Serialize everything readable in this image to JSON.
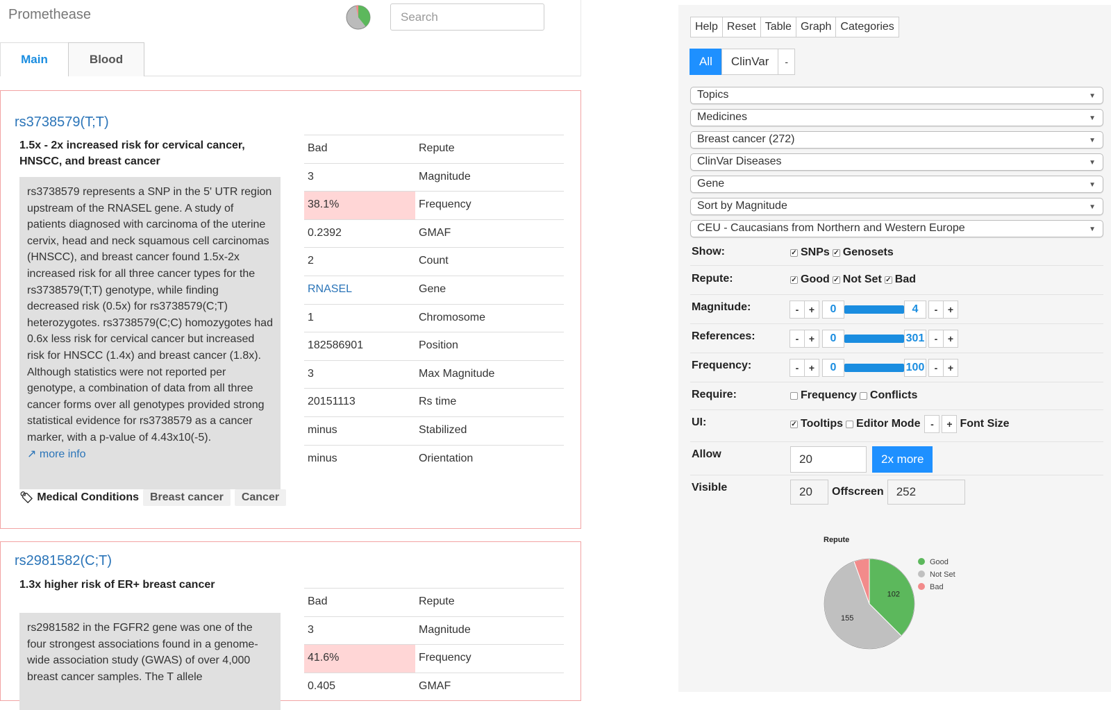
{
  "header": {
    "brand": "Promethease",
    "search_placeholder": "Search",
    "tabs": [
      "Main",
      "Blood"
    ]
  },
  "cards": [
    {
      "title": "rs3738579(T;T)",
      "summary": "1.5x - 2x increased risk for cervical cancer, HNSCC, and breast cancer",
      "description": "rs3738579 represents a SNP in the 5' UTR region upstream of the RNASEL gene. A study of patients diagnosed with carcinoma of the uterine cervix, head and neck squamous cell carcinomas (HNSCC), and breast cancer found 1.5x-2x increased risk for all three cancer types for the rs3738579(T;T) genotype, while finding decreased risk (0.5x) for rs3738579(C;T) heterozygotes. rs3738579(C;C) homozygotes had 0.6x less risk for cervical cancer but increased risk for HNSCC (1.4x) and breast cancer (1.8x). Although statistics were not reported per genotype, a combination of data from all three cancer forms over all genotypes provided strong statistical evidence for rs3738579 as a cancer marker, with a p-value of 4.43x10(-5).",
      "more_info": "more info",
      "tags_label": "Medical Conditions",
      "tags": [
        "Breast cancer",
        "Cancer"
      ],
      "props": [
        {
          "value": "Bad",
          "key": "Repute"
        },
        {
          "value": "3",
          "key": "Magnitude"
        },
        {
          "value": "38.1%",
          "key": "Frequency"
        },
        {
          "value": "0.2392",
          "key": "GMAF"
        },
        {
          "value": "2",
          "key": "Count"
        },
        {
          "value": "RNASEL",
          "key": "Gene"
        },
        {
          "value": "1",
          "key": "Chromosome"
        },
        {
          "value": "182586901",
          "key": "Position"
        },
        {
          "value": "3",
          "key": "Max Magnitude"
        },
        {
          "value": "20151113",
          "key": "Rs time"
        },
        {
          "value": "minus",
          "key": "Stabilized"
        },
        {
          "value": "minus",
          "key": "Orientation"
        }
      ]
    },
    {
      "title": "rs2981582(C;T)",
      "summary": "1.3x higher risk of ER+ breast cancer",
      "description": "rs2981582 in the FGFR2 gene was one of the four strongest associations found in a genome-wide association study (GWAS) of over 4,000 breast cancer samples. The T allele",
      "props": [
        {
          "value": "Bad",
          "key": "Repute"
        },
        {
          "value": "3",
          "key": "Magnitude"
        },
        {
          "value": "41.6%",
          "key": "Frequency"
        },
        {
          "value": "0.405",
          "key": "GMAF"
        }
      ]
    }
  ],
  "panel": {
    "toolbar": [
      "Help",
      "Reset",
      "Table",
      "Graph",
      "Categories"
    ],
    "filter_buttons": [
      "All",
      "ClinVar",
      "-"
    ],
    "selects": [
      "Topics",
      "Medicines",
      "Breast cancer (272)",
      "ClinVar Diseases",
      "Gene",
      "Sort by Magnitude",
      "CEU - Caucasians from Northern and Western Europe"
    ],
    "show": {
      "label": "Show:",
      "options": [
        "SNPs",
        "Genosets"
      ]
    },
    "repute": {
      "label": "Repute:",
      "options": [
        "Good",
        "Not Set",
        "Bad"
      ]
    },
    "ranges": [
      {
        "label": "Magnitude:",
        "min": "0",
        "max": "4"
      },
      {
        "label": "References:",
        "min": "0",
        "max": "301"
      },
      {
        "label": "Frequency:",
        "min": "0",
        "max": "100"
      }
    ],
    "require": {
      "label": "Require:",
      "options": [
        "Frequency",
        "Conflicts"
      ]
    },
    "ui": {
      "label": "UI:",
      "options": [
        "Tooltips",
        "Editor Mode"
      ],
      "font_size": "Font Size"
    },
    "allow": {
      "label": "Allow",
      "value": "20",
      "button": "2x more"
    },
    "visible": {
      "label": "Visible",
      "value": "20",
      "offscreen_label": "Offscreen",
      "offscreen_value": "252"
    }
  },
  "chart_data": {
    "type": "pie",
    "title": "Repute",
    "labels": [
      "Good",
      "Not Set",
      "Bad"
    ],
    "values": [
      102,
      155,
      15
    ],
    "colors": [
      "#5cb85c",
      "#c0c0c0",
      "#f28b8b"
    ],
    "data_labels": [
      "102",
      "155",
      ""
    ],
    "legend": "right"
  }
}
